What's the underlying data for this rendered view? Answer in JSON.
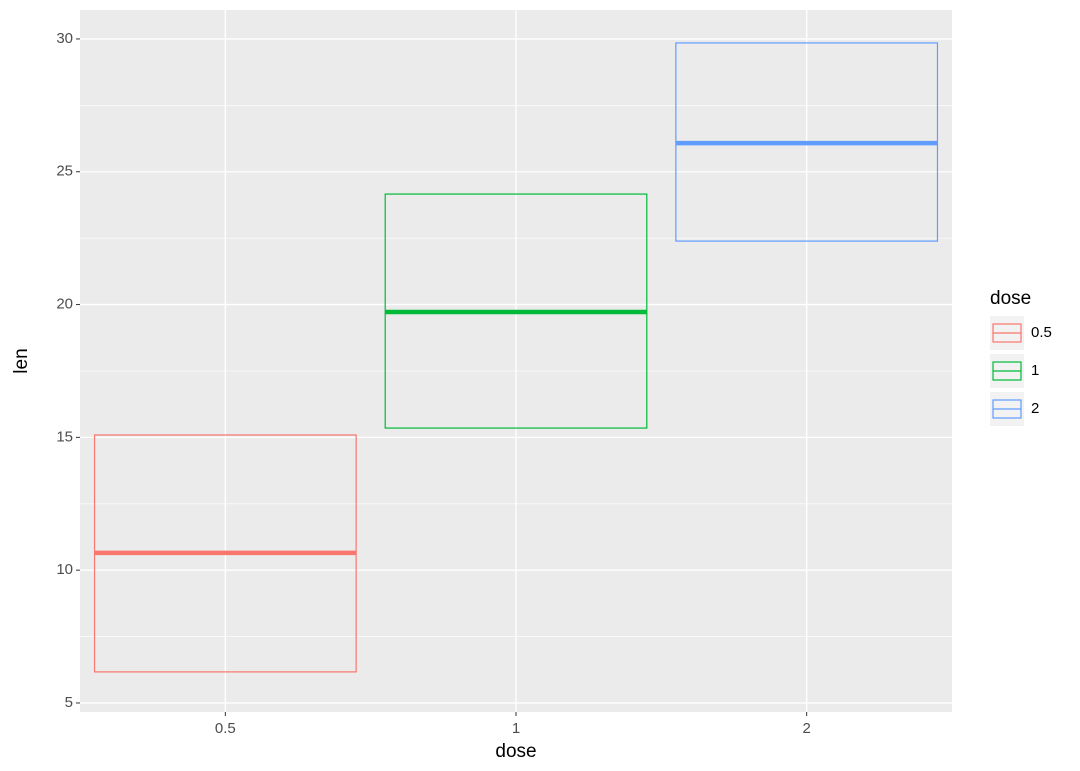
{
  "chart_data": {
    "type": "crossbar",
    "x_label": "dose",
    "y_label": "len",
    "categories": [
      "0.5",
      "1",
      "2"
    ],
    "series": [
      {
        "name": "0.5",
        "color": "#F8766D",
        "ymin": 6.17,
        "y": 10.65,
        "ymax": 15.09
      },
      {
        "name": "1",
        "color": "#00BA38",
        "ymin": 15.35,
        "y": 19.72,
        "ymax": 24.16
      },
      {
        "name": "2",
        "color": "#619CFF",
        "ymin": 22.39,
        "y": 26.08,
        "ymax": 29.85
      }
    ],
    "ylim": [
      4.66,
      31.09
    ],
    "yticks": [
      5,
      10,
      15,
      20,
      25,
      30
    ],
    "yminorticks": [
      7.5,
      12.5,
      17.5,
      22.5,
      27.5
    ],
    "grid": true,
    "legend_title": "dose",
    "legend_position": "right"
  }
}
